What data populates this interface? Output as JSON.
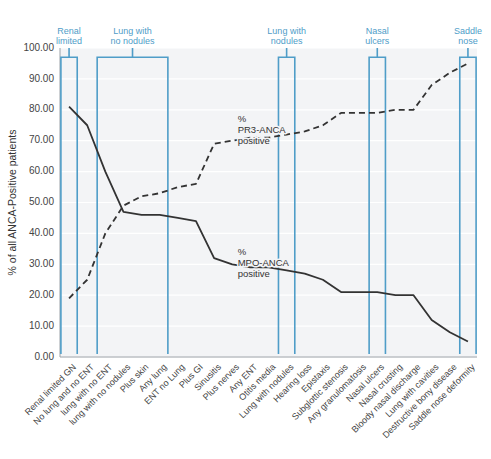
{
  "chart_data": {
    "type": "line",
    "categories": [
      "Renal limited GN",
      "No lung and no ENT",
      "lung with no ENT",
      "lung with no nodules",
      "Plus skin",
      "Any lung",
      "ENT no Lung",
      "Plus GI",
      "Sinusitis",
      "Plus nerves",
      "Any ENT",
      "Otitis media",
      "Lung with nodules",
      "Hearing loss",
      "Epistaxis",
      "Subglottic stenosis",
      "Any granulomatosis",
      "Nasal ulcers",
      "Nasal crusting",
      "Bloody nasal discharge",
      "Lung with cavities",
      "Destructive bony disease",
      "Saddle nose deformity"
    ],
    "series": [
      {
        "color": "#333333",
        "line_style": "solid",
        "values": [
          81,
          75,
          60,
          47,
          46,
          46,
          45,
          44,
          32,
          30,
          29,
          29,
          28,
          27,
          25,
          21,
          21,
          21,
          20,
          20,
          12,
          8,
          5
        ]
      },
      {
        "color": "#333333",
        "line_style": "dashed",
        "values": [
          19,
          25,
          40,
          49,
          52,
          53,
          55,
          56,
          69,
          70,
          71,
          71,
          72,
          73,
          75,
          79,
          79,
          79,
          80,
          80,
          88,
          92,
          95
        ]
      }
    ],
    "y_label": "% of all ANCA-Positive patients",
    "ylim": [
      0,
      100
    ],
    "yticks": [
      {
        "value": 0,
        "label": "0.00"
      },
      {
        "value": 10,
        "label": "10.00"
      },
      {
        "value": 20,
        "label": "20.00"
      },
      {
        "value": 30,
        "label": "30.00"
      },
      {
        "value": 40,
        "label": "40.00"
      },
      {
        "value": 50,
        "label": "50.00"
      },
      {
        "value": 60,
        "label": "60.00"
      },
      {
        "value": 70,
        "label": "70.00"
      },
      {
        "value": 80,
        "label": "80.00"
      },
      {
        "value": 90,
        "label": "90.00"
      },
      {
        "value": 100,
        "label": "100.00"
      }
    ],
    "grid": true,
    "annotations": [
      {
        "text": "%\nPR3-ANCA\npositive",
        "x": 9.3,
        "y": 79
      },
      {
        "text": "%\nMPO-ANCA\npositive",
        "x": 9.3,
        "y": 36
      }
    ],
    "brackets": [
      {
        "from": "Renal limited GN",
        "to": "Renal limited GN",
        "label": "Renal\nlimited",
        "color": "#4f9dc8"
      },
      {
        "from": "lung with no ENT",
        "to": "Any lung",
        "label": "Lung with\nno nodules",
        "color": "#4f9dc8"
      },
      {
        "from": "Lung with nodules",
        "to": "Lung with nodules",
        "label": "Lung with\nnodules",
        "color": "#4f9dc8"
      },
      {
        "from": "Nasal ulcers",
        "to": "Nasal ulcers",
        "label": "Nasal\nulcers",
        "color": "#4f9dc8"
      },
      {
        "from": "Saddle nose deformity",
        "to": "Saddle nose deformity",
        "label": "Saddle\nnose",
        "color": "#4f9dc8"
      }
    ]
  }
}
